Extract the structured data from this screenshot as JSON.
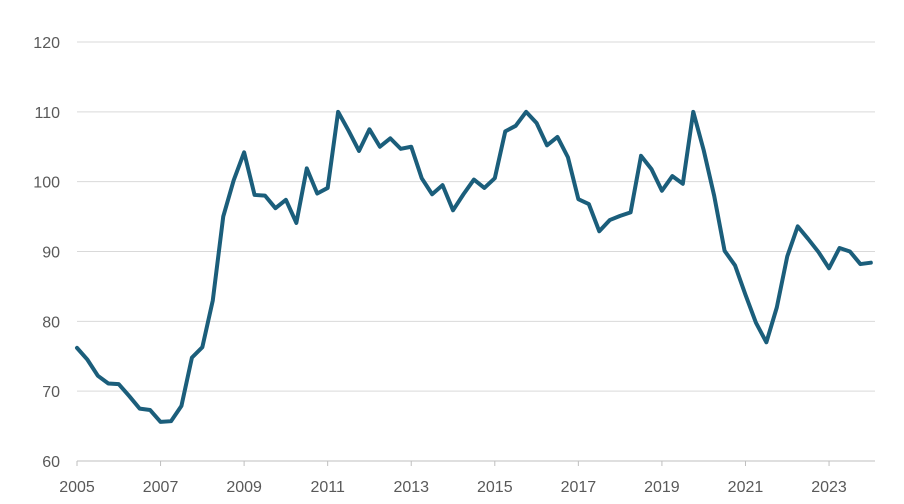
{
  "chart_data": {
    "type": "line",
    "title": "",
    "xlabel": "",
    "ylabel": "",
    "ylim": [
      60,
      120
    ],
    "xlim": [
      2005,
      2024.1
    ],
    "y_ticks": [
      "60",
      "70",
      "80",
      "90",
      "100",
      "110",
      "120"
    ],
    "x_ticks": [
      "2005",
      "2007",
      "2009",
      "2011",
      "2013",
      "2015",
      "2017",
      "2019",
      "2021",
      "2023"
    ],
    "grid": true,
    "legend": "none",
    "line_color": "#1b5e7b",
    "series": [
      {
        "x": [
          2005.0,
          2005.25,
          2005.5,
          2005.75,
          2006.0,
          2006.25,
          2006.5,
          2006.75,
          2007.0,
          2007.25,
          2007.5,
          2007.75,
          2008.0,
          2008.25,
          2008.5,
          2008.75,
          2009.0,
          2009.25,
          2009.5,
          2009.75,
          2010.0,
          2010.25,
          2010.5,
          2010.75,
          2011.0,
          2011.25,
          2011.5,
          2011.75,
          2012.0,
          2012.25,
          2012.5,
          2012.75,
          2013.0,
          2013.25,
          2013.5,
          2013.75,
          2014.0,
          2014.25,
          2014.5,
          2014.75,
          2015.0,
          2015.25,
          2015.5,
          2015.75,
          2016.0,
          2016.25,
          2016.5,
          2016.75,
          2017.0,
          2017.25,
          2017.5,
          2017.75,
          2018.0,
          2018.25,
          2018.5,
          2018.75,
          2019.0,
          2019.25,
          2019.5,
          2019.75,
          2020.0,
          2020.25,
          2020.5,
          2020.75,
          2021.0,
          2021.25,
          2021.5,
          2021.75,
          2022.0,
          2022.25,
          2022.5,
          2022.75,
          2023.0,
          2023.25,
          2023.5,
          2023.75,
          2024.0
        ],
        "values": [
          76.2,
          74.5,
          72.2,
          71.1,
          71.0,
          69.3,
          67.5,
          67.3,
          65.6,
          65.7,
          67.9,
          74.8,
          76.3,
          83.0,
          95.0,
          100.2,
          104.2,
          98.1,
          98.0,
          96.2,
          97.4,
          94.1,
          101.9,
          98.3,
          99.1,
          110.0,
          107.3,
          104.4,
          107.5,
          105.0,
          106.2,
          104.7,
          105.0,
          100.5,
          98.2,
          99.5,
          95.9,
          98.2,
          100.3,
          99.1,
          100.5,
          107.2,
          108.0,
          110.0,
          108.4,
          105.2,
          106.4,
          103.5,
          97.5,
          96.8,
          92.9,
          94.5,
          95.1,
          95.6,
          103.7,
          101.8,
          98.7,
          100.8,
          99.7,
          110.0,
          104.5,
          98.0,
          90.1,
          88.0,
          83.8,
          79.8,
          77.0,
          82.0,
          89.3,
          93.6,
          91.8,
          89.9,
          87.6,
          90.5,
          90.0,
          88.2,
          88.4
        ]
      }
    ]
  }
}
